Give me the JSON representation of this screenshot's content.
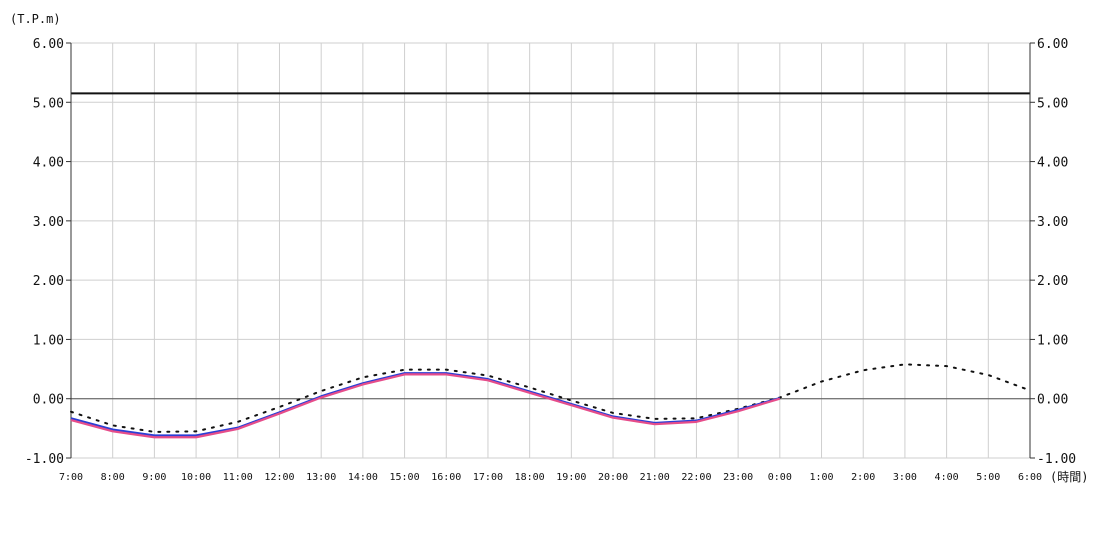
{
  "chart_data": {
    "type": "line",
    "y_unit_label": "(T.P.m)",
    "x_unit_label": "(時間)",
    "categories": [
      "7:00",
      "8:00",
      "9:00",
      "10:00",
      "11:00",
      "12:00",
      "13:00",
      "14:00",
      "15:00",
      "16:00",
      "17:00",
      "18:00",
      "19:00",
      "20:00",
      "21:00",
      "22:00",
      "23:00",
      "0:00",
      "1:00",
      "2:00",
      "3:00",
      "4:00",
      "5:00",
      "6:00"
    ],
    "y_ticks": [
      "6.00",
      "5.00",
      "4.00",
      "3.00",
      "2.00",
      "1.00",
      "0.00",
      "-1.00"
    ],
    "ylim": [
      -1,
      6
    ],
    "grid": true,
    "reference_line": {
      "value": 5.15,
      "color": "#111111"
    },
    "series": [
      {
        "style": "dotted",
        "color": "#111111",
        "values": [
          -0.22,
          -0.45,
          -0.56,
          -0.55,
          -0.39,
          -0.14,
          0.13,
          0.36,
          0.49,
          0.49,
          0.39,
          0.19,
          -0.03,
          -0.24,
          -0.34,
          -0.33,
          -0.17,
          0.02,
          0.29,
          0.48,
          0.58,
          0.55,
          0.4,
          0.14
        ]
      },
      {
        "style": "solid",
        "color": "#2a3fd6",
        "values": [
          -0.33,
          -0.52,
          -0.62,
          -0.62,
          -0.49,
          -0.23,
          0.04,
          0.26,
          0.43,
          0.43,
          0.33,
          0.12,
          -0.09,
          -0.3,
          -0.41,
          -0.37,
          -0.19,
          0.01,
          null,
          null,
          null,
          null,
          null,
          null
        ]
      },
      {
        "style": "solid",
        "color": "#e64d8a",
        "values": [
          -0.36,
          -0.55,
          -0.65,
          -0.65,
          -0.51,
          -0.25,
          0.02,
          0.24,
          0.41,
          0.41,
          0.31,
          0.1,
          -0.11,
          -0.32,
          -0.43,
          -0.39,
          -0.21,
          0.0,
          null,
          null,
          null,
          null,
          null,
          null
        ]
      }
    ]
  }
}
